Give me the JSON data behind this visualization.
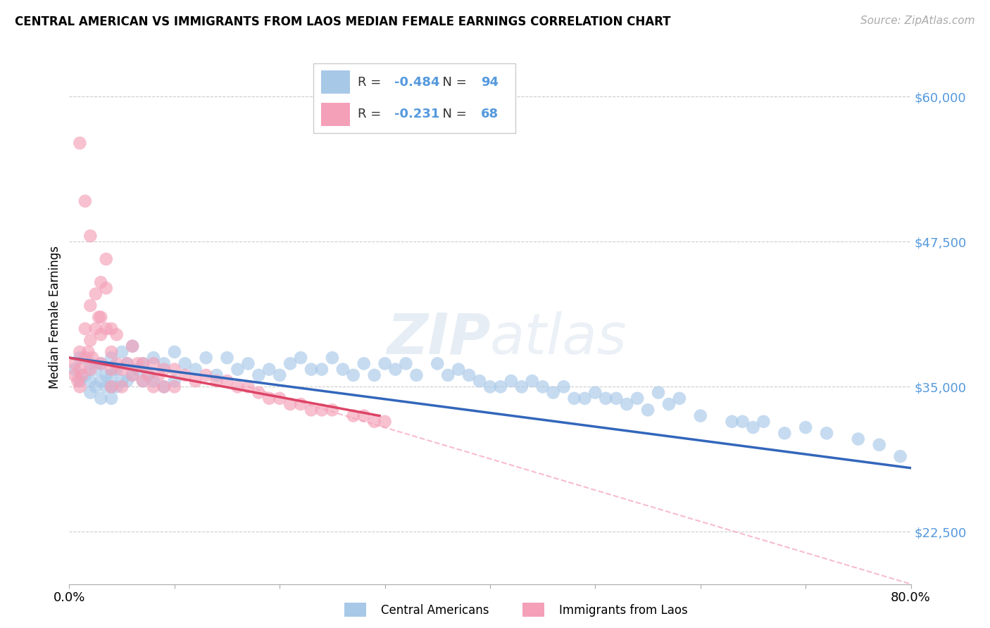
{
  "title": "CENTRAL AMERICAN VS IMMIGRANTS FROM LAOS MEDIAN FEMALE EARNINGS CORRELATION CHART",
  "source": "Source: ZipAtlas.com",
  "ylabel": "Median Female Earnings",
  "legend_label_1": "Central Americans",
  "legend_label_2": "Immigrants from Laos",
  "r1": -0.484,
  "n1": 94,
  "r2": -0.231,
  "n2": 68,
  "color_blue": "#a8c8e8",
  "color_pink": "#f4a0b8",
  "color_blue_line": "#3366bb",
  "color_pink_line": "#dd4466",
  "color_dashed": "#f4a0b8",
  "xmin": 0.0,
  "xmax": 0.8,
  "ymin": 18000,
  "ymax": 64000,
  "yticks": [
    22500,
    35000,
    47500,
    60000
  ],
  "ytick_labels": [
    "$22,500",
    "$35,000",
    "$47,500",
    "$60,000"
  ],
  "xticks": [
    0.0,
    0.1,
    0.2,
    0.3,
    0.4,
    0.5,
    0.6,
    0.7,
    0.8
  ],
  "blue_x": [
    0.005,
    0.01,
    0.01,
    0.015,
    0.02,
    0.02,
    0.02,
    0.025,
    0.025,
    0.03,
    0.03,
    0.03,
    0.035,
    0.035,
    0.04,
    0.04,
    0.04,
    0.04,
    0.045,
    0.045,
    0.05,
    0.05,
    0.055,
    0.055,
    0.06,
    0.06,
    0.065,
    0.07,
    0.07,
    0.075,
    0.08,
    0.08,
    0.09,
    0.09,
    0.1,
    0.1,
    0.11,
    0.12,
    0.13,
    0.14,
    0.15,
    0.16,
    0.17,
    0.18,
    0.19,
    0.2,
    0.21,
    0.22,
    0.23,
    0.24,
    0.25,
    0.26,
    0.27,
    0.28,
    0.29,
    0.3,
    0.31,
    0.32,
    0.33,
    0.35,
    0.37,
    0.38,
    0.39,
    0.4,
    0.42,
    0.43,
    0.44,
    0.45,
    0.46,
    0.47,
    0.48,
    0.5,
    0.52,
    0.53,
    0.54,
    0.56,
    0.58,
    0.6,
    0.63,
    0.65,
    0.68,
    0.7,
    0.72,
    0.75,
    0.77,
    0.79,
    0.55,
    0.57,
    0.49,
    0.51,
    0.64,
    0.66,
    0.41,
    0.36
  ],
  "blue_y": [
    36500,
    37500,
    35500,
    36000,
    37000,
    35500,
    34500,
    36500,
    35000,
    37000,
    35500,
    34000,
    36000,
    35000,
    37500,
    36000,
    35000,
    34000,
    36500,
    35000,
    38000,
    35500,
    37000,
    35500,
    38500,
    36000,
    36500,
    37000,
    35500,
    36000,
    37500,
    35500,
    37000,
    35000,
    38000,
    35500,
    37000,
    36500,
    37500,
    36000,
    37500,
    36500,
    37000,
    36000,
    36500,
    36000,
    37000,
    37500,
    36500,
    36500,
    37500,
    36500,
    36000,
    37000,
    36000,
    37000,
    36500,
    37000,
    36000,
    37000,
    36500,
    36000,
    35500,
    35000,
    35500,
    35000,
    35500,
    35000,
    34500,
    35000,
    34000,
    34500,
    34000,
    33500,
    34000,
    34500,
    34000,
    32500,
    32000,
    31500,
    31000,
    31500,
    31000,
    30500,
    30000,
    29000,
    33000,
    33500,
    34000,
    34000,
    32000,
    32000,
    35000,
    36000
  ],
  "pink_x": [
    0.005,
    0.005,
    0.008,
    0.01,
    0.01,
    0.01,
    0.012,
    0.015,
    0.015,
    0.018,
    0.02,
    0.02,
    0.02,
    0.022,
    0.025,
    0.025,
    0.028,
    0.03,
    0.03,
    0.03,
    0.03,
    0.035,
    0.035,
    0.035,
    0.04,
    0.04,
    0.04,
    0.04,
    0.045,
    0.045,
    0.05,
    0.05,
    0.055,
    0.06,
    0.06,
    0.065,
    0.07,
    0.07,
    0.075,
    0.08,
    0.08,
    0.085,
    0.09,
    0.09,
    0.1,
    0.1,
    0.11,
    0.12,
    0.13,
    0.14,
    0.15,
    0.16,
    0.17,
    0.18,
    0.19,
    0.2,
    0.21,
    0.22,
    0.23,
    0.24,
    0.25,
    0.27,
    0.28,
    0.29,
    0.3,
    0.01,
    0.015,
    0.02
  ],
  "pink_y": [
    37000,
    36000,
    35500,
    38000,
    36500,
    35000,
    36000,
    40000,
    37500,
    38000,
    42000,
    39000,
    36500,
    37500,
    43000,
    40000,
    41000,
    44000,
    41000,
    39500,
    37000,
    46000,
    43500,
    40000,
    40000,
    38000,
    36500,
    35000,
    39500,
    37000,
    36500,
    35000,
    37000,
    38500,
    36000,
    37000,
    37000,
    35500,
    36000,
    37000,
    35000,
    36000,
    36500,
    35000,
    36500,
    35000,
    36000,
    35500,
    36000,
    35500,
    35500,
    35000,
    35000,
    34500,
    34000,
    34000,
    33500,
    33500,
    33000,
    33000,
    33000,
    32500,
    32500,
    32000,
    32000,
    56000,
    51000,
    48000
  ],
  "blue_line_x0": 0.0,
  "blue_line_x1": 0.8,
  "blue_line_y0": 37500,
  "blue_line_y1": 28000,
  "pink_line_x0": 0.0,
  "pink_line_x1": 0.295,
  "pink_line_y0": 37500,
  "pink_line_y1": 32500,
  "dashed_line_x0": 0.17,
  "dashed_line_x1": 0.8,
  "dashed_line_y0": 35000,
  "dashed_line_y1": 18000
}
